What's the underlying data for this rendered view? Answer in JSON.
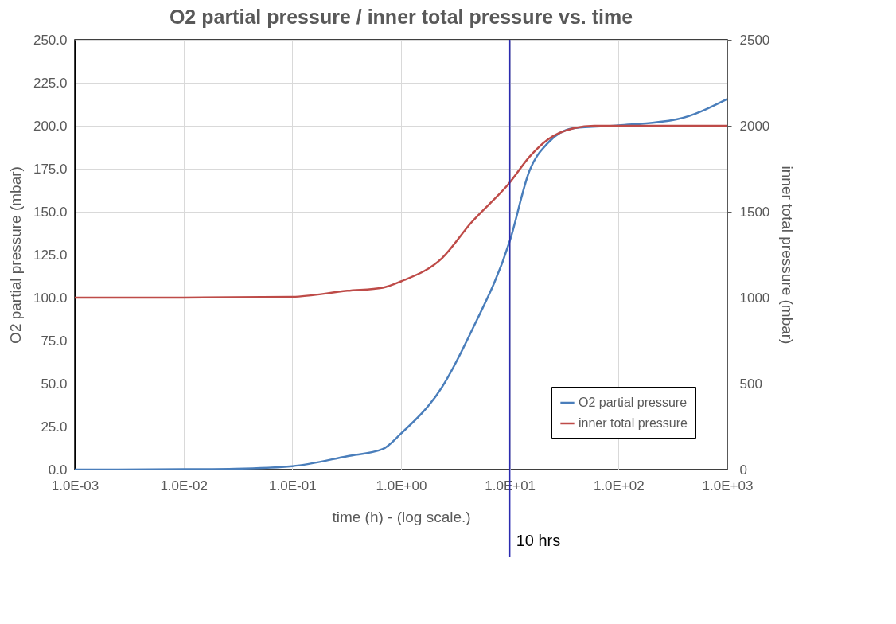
{
  "chart_data": {
    "type": "line",
    "title": "O2 partial pressure / inner total pressure vs. time",
    "xlabel": "time (h) - (log scale.)",
    "ylabel": "O2 partial pressure (mbar)",
    "y2label": "inner total pressure (mbar)",
    "log": "x",
    "grid": true,
    "legend": "bottom right",
    "marker": "none",
    "line_style": "solid",
    "xlim": [
      0.001,
      1000
    ],
    "xticks": [
      {
        "value": 0.001,
        "label": "1.0E-03"
      },
      {
        "value": 0.01,
        "label": "1.0E-02"
      },
      {
        "value": 0.1,
        "label": "1.0E-01"
      },
      {
        "value": 1,
        "label": "1.0E+00"
      },
      {
        "value": 10,
        "label": "1.0E+01"
      },
      {
        "value": 100,
        "label": "1.0E+02"
      },
      {
        "value": 1000,
        "label": "1.0E+03"
      }
    ],
    "ylim": [
      0,
      250
    ],
    "yticks": [
      {
        "value": 0,
        "label": "0.0"
      },
      {
        "value": 25,
        "label": "25.0"
      },
      {
        "value": 50,
        "label": "50.0"
      },
      {
        "value": 75,
        "label": "75.0"
      },
      {
        "value": 100,
        "label": "100.0"
      },
      {
        "value": 125,
        "label": "125.0"
      },
      {
        "value": 150,
        "label": "150.0"
      },
      {
        "value": 175,
        "label": "175.0"
      },
      {
        "value": 200,
        "label": "200.0"
      },
      {
        "value": 225,
        "label": "225.0"
      },
      {
        "value": 250,
        "label": "250.0"
      }
    ],
    "y2lim": [
      0,
      2500
    ],
    "y2ticks": [
      0,
      500,
      1000,
      1500,
      2000,
      2500
    ],
    "series": [
      {
        "name": "O2 partial pressure",
        "color": "#4a7ebb",
        "x": [
          0.001,
          0.01,
          0.03,
          0.1,
          0.32,
          0.68,
          1,
          2.38,
          4.4,
          10,
          15.2,
          22.4,
          39,
          100,
          346,
          1000
        ],
        "values": [
          0,
          0.2,
          0.5,
          2,
          7.8,
          12,
          21,
          48,
          80,
          133,
          174,
          190,
          198.6,
          200.2,
          203.8,
          215.6
        ]
      },
      {
        "name": "inner total pressure",
        "color": "#be4b48",
        "axis": "y2",
        "x": [
          0.001,
          0.01,
          0.1,
          0.32,
          0.68,
          1,
          2.38,
          4.4,
          10,
          15.2,
          22.4,
          39,
          60,
          100,
          1000
        ],
        "values": [
          1000,
          1000,
          1005,
          1040,
          1058,
          1095,
          1230,
          1435,
          1670,
          1820,
          1920,
          1986,
          2000,
          2000,
          2000
        ]
      }
    ],
    "ref_lines": [
      {
        "axis": "x",
        "value": 10,
        "label": "10 hrs",
        "color": "#2b2bb0"
      }
    ]
  }
}
